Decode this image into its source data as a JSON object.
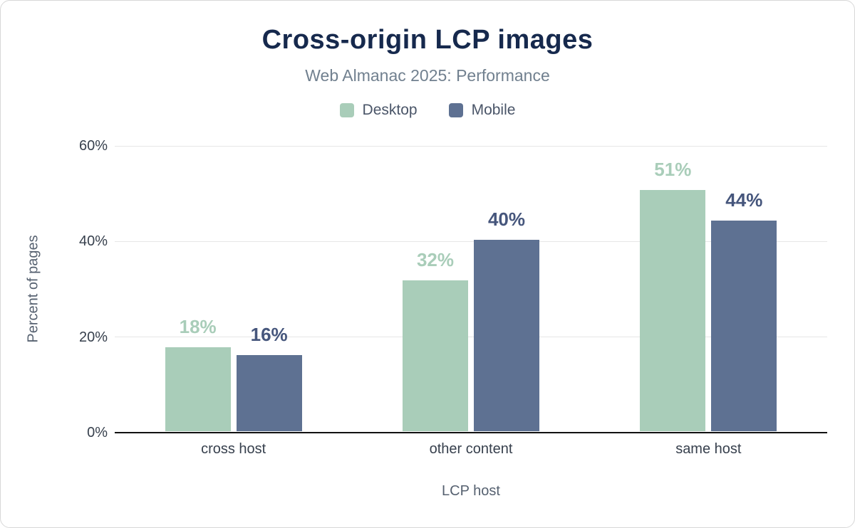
{
  "chart_data": {
    "type": "bar",
    "title": "Cross-origin LCP images",
    "subtitle": "Web Almanac 2025: Performance",
    "xlabel": "LCP host",
    "ylabel": "Percent of pages",
    "categories": [
      "cross host",
      "other content",
      "same host"
    ],
    "series": [
      {
        "name": "Desktop",
        "color": "#a9cdb9",
        "label_color": "#a9cdb9",
        "values": [
          17.5,
          31.5,
          50.5
        ],
        "labels": [
          "18%",
          "32%",
          "51%"
        ]
      },
      {
        "name": "Mobile",
        "color": "#5e7192",
        "label_color": "#46567c",
        "values": [
          16,
          40,
          44
        ],
        "labels": [
          "16%",
          "40%",
          "44%"
        ]
      }
    ],
    "ylim": [
      0,
      60
    ],
    "y_ticks": [
      {
        "value": 0,
        "label": "0%"
      },
      {
        "value": 20,
        "label": "20%"
      },
      {
        "value": 40,
        "label": "40%"
      },
      {
        "value": 60,
        "label": "60%"
      }
    ],
    "grid": "horizontal",
    "legend_position": "top"
  },
  "colors": {
    "title": "#16294d",
    "subtitle": "#71808f",
    "axis_text": "#37404d",
    "axis_title": "#566170",
    "gridline": "#e6e6e6",
    "axis_line": "#111111",
    "legend_text": "#4a5568"
  }
}
